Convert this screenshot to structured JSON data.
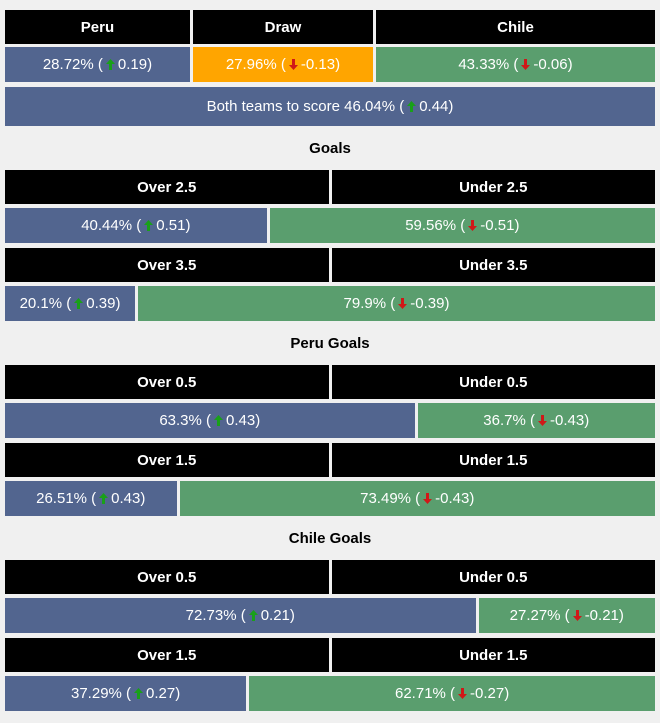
{
  "match": {
    "headers": [
      "Peru",
      "Draw",
      "Chile"
    ],
    "cells": [
      {
        "value": 28.72,
        "label": "28.72%",
        "change": 0.19
      },
      {
        "value": 27.96,
        "label": "27.96%",
        "change": -0.13
      },
      {
        "value": 43.33,
        "label": "43.33%",
        "change": -0.06
      }
    ]
  },
  "btts": {
    "text": "Both teams to score",
    "label": "46.04%",
    "change": 0.44
  },
  "sections": [
    {
      "title": "Goals",
      "markets": [
        {
          "headers": [
            "Over 2.5",
            "Under 2.5"
          ],
          "cells": [
            {
              "value": 40.44,
              "label": "40.44%",
              "change": 0.51
            },
            {
              "value": 59.56,
              "label": "59.56%",
              "change": -0.51
            }
          ]
        },
        {
          "headers": [
            "Over 3.5",
            "Under 3.5"
          ],
          "cells": [
            {
              "value": 20.1,
              "label": "20.1%",
              "change": 0.39
            },
            {
              "value": 79.9,
              "label": "79.9%",
              "change": -0.39
            }
          ]
        }
      ]
    },
    {
      "title": "Peru Goals",
      "markets": [
        {
          "headers": [
            "Over 0.5",
            "Under 0.5"
          ],
          "cells": [
            {
              "value": 63.3,
              "label": "63.3%",
              "change": 0.43
            },
            {
              "value": 36.7,
              "label": "36.7%",
              "change": -0.43
            }
          ]
        },
        {
          "headers": [
            "Over 1.5",
            "Under 1.5"
          ],
          "cells": [
            {
              "value": 26.51,
              "label": "26.51%",
              "change": 0.43
            },
            {
              "value": 73.49,
              "label": "73.49%",
              "change": -0.43
            }
          ]
        }
      ]
    },
    {
      "title": "Chile Goals",
      "markets": [
        {
          "headers": [
            "Over 0.5",
            "Under 0.5"
          ],
          "cells": [
            {
              "value": 72.73,
              "label": "72.73%",
              "change": 0.21
            },
            {
              "value": 27.27,
              "label": "27.27%",
              "change": -0.21
            }
          ]
        },
        {
          "headers": [
            "Over 1.5",
            "Under 1.5"
          ],
          "cells": [
            {
              "value": 37.29,
              "label": "37.29%",
              "change": 0.27
            },
            {
              "value": 62.71,
              "label": "62.71%",
              "change": -0.27
            }
          ]
        }
      ]
    }
  ]
}
